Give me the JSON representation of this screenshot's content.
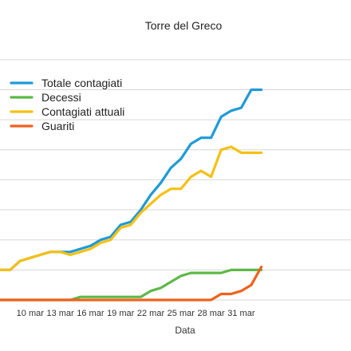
{
  "chart_data": {
    "type": "line",
    "title": "Torre del Greco",
    "xlabel": "Data",
    "ylabel": "",
    "grid": true,
    "legend_position": "top-left",
    "x": [
      "7 mar",
      "8 mar",
      "9 mar",
      "10 mar",
      "11 mar",
      "12 mar",
      "13 mar",
      "14 mar",
      "15 mar",
      "16 mar",
      "17 mar",
      "18 mar",
      "19 mar",
      "20 mar",
      "21 mar",
      "22 mar",
      "23 mar",
      "24 mar",
      "25 mar",
      "26 mar",
      "27 mar",
      "28 mar",
      "29 mar",
      "30 mar",
      "31 mar",
      "1 apr",
      "2 apr"
    ],
    "x_tick_labels": [
      "10 mar",
      "13 mar",
      "16 mar",
      "19 mar",
      "22 mar",
      "25 mar",
      "28 mar",
      "31 mar"
    ],
    "ylim": [
      0,
      8.5
    ],
    "series": [
      {
        "name": "Totale contagiati",
        "color": "#1f9ad6",
        "values": [
          1,
          1,
          1.3,
          1.4,
          1.5,
          1.6,
          1.6,
          1.6,
          1.7,
          1.8,
          2.0,
          2.1,
          2.5,
          2.6,
          3.0,
          3.5,
          3.9,
          4.4,
          4.7,
          5.2,
          5.4,
          5.4,
          6.1,
          6.3,
          6.4,
          7.0,
          7.0
        ]
      },
      {
        "name": "Decessi",
        "color": "#5cb946",
        "values": [
          0,
          0,
          0,
          0,
          0,
          0,
          0,
          0,
          0.1,
          0.1,
          0.1,
          0.1,
          0.1,
          0.1,
          0.1,
          0.3,
          0.4,
          0.6,
          0.8,
          0.9,
          0.9,
          0.9,
          0.9,
          1.0,
          1.0,
          1.0,
          1.0
        ]
      },
      {
        "name": "Contagiati attuali",
        "color": "#f5c013",
        "values": [
          1,
          1,
          1.3,
          1.4,
          1.5,
          1.6,
          1.6,
          1.5,
          1.6,
          1.7,
          1.9,
          2.0,
          2.4,
          2.5,
          2.9,
          3.2,
          3.5,
          3.7,
          3.7,
          4.1,
          4.3,
          4.1,
          5.0,
          5.1,
          4.9,
          4.9,
          4.9
        ]
      },
      {
        "name": "Guariti",
        "color": "#f0621c",
        "values": [
          0,
          0,
          0,
          0,
          0,
          0,
          0,
          0,
          0,
          0,
          0,
          0,
          0,
          0,
          0,
          0,
          0,
          0,
          0,
          0,
          0,
          0,
          0.2,
          0.2,
          0.3,
          0.5,
          1.1
        ]
      }
    ]
  }
}
